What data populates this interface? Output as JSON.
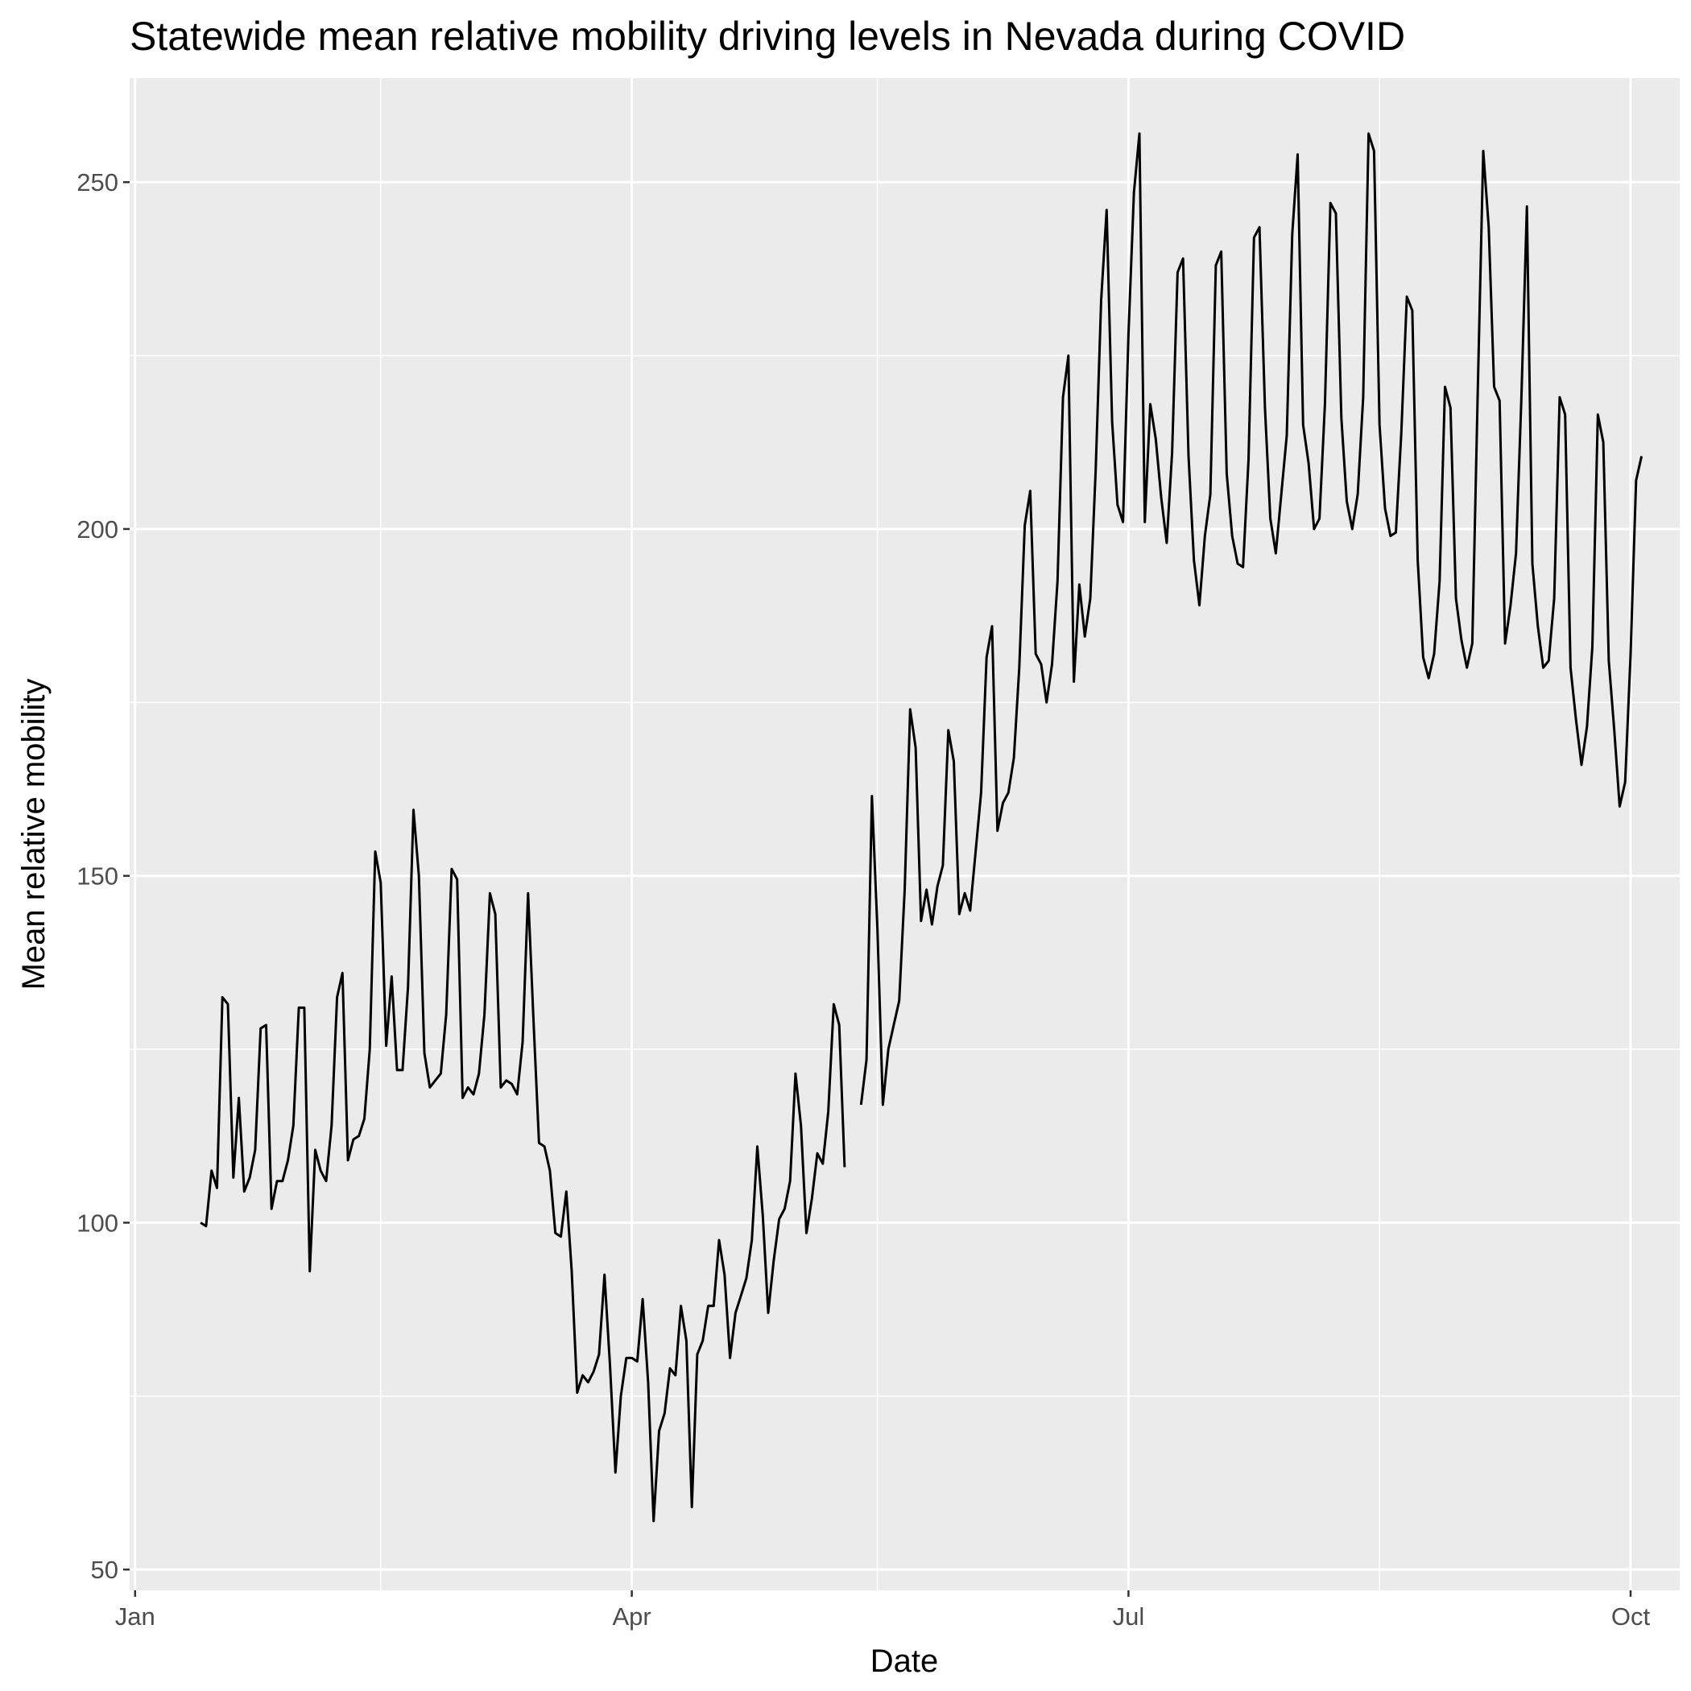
{
  "chart_data": {
    "type": "line",
    "title": "Statewide mean relative mobility driving levels in Nevada during COVID",
    "xlabel": "Date",
    "ylabel": "Mean relative mobility",
    "x_axis": {
      "kind": "date",
      "range": [
        "2019-12-31",
        "2020-10-10"
      ],
      "ticks": [
        {
          "date": "2020-01-01",
          "label": "Jan"
        },
        {
          "date": "2020-04-01",
          "label": "Apr"
        },
        {
          "date": "2020-07-01",
          "label": "Jul"
        },
        {
          "date": "2020-10-01",
          "label": "Oct"
        }
      ],
      "minor_gridlines": [
        "2020-02-15",
        "2020-05-16",
        "2020-08-16"
      ]
    },
    "y_axis": {
      "range": [
        47,
        265
      ],
      "ticks": [
        50,
        100,
        150,
        200,
        250
      ],
      "minor_gridlines": [
        75,
        125,
        175,
        225
      ]
    },
    "grid": true,
    "legend": "none",
    "colors": {
      "panel_background": "#ebebeb",
      "gridline": "#ffffff",
      "line": "#000000",
      "tick_text": "#4d4d4d"
    },
    "series": [
      {
        "points": [
          [
            "2020-01-13",
            100
          ],
          [
            "2020-01-14",
            99.5
          ],
          [
            "2020-01-15",
            107.5
          ],
          [
            "2020-01-16",
            105
          ],
          [
            "2020-01-17",
            132.5
          ],
          [
            "2020-01-18",
            131.5
          ],
          [
            "2020-01-19",
            106.5
          ],
          [
            "2020-01-20",
            118
          ],
          [
            "2020-01-21",
            104.5
          ],
          [
            "2020-01-22",
            106.5
          ],
          [
            "2020-01-23",
            110.5
          ],
          [
            "2020-01-24",
            128
          ],
          [
            "2020-01-25",
            128.5
          ],
          [
            "2020-01-26",
            102
          ],
          [
            "2020-01-27",
            106
          ],
          [
            "2020-01-28",
            106
          ],
          [
            "2020-01-29",
            109
          ],
          [
            "2020-01-30",
            114
          ],
          [
            "2020-01-31",
            131
          ],
          [
            "2020-02-01",
            131
          ],
          [
            "2020-02-02",
            93
          ],
          [
            "2020-02-03",
            110.5
          ],
          [
            "2020-02-04",
            107.5
          ],
          [
            "2020-02-05",
            106
          ],
          [
            "2020-02-06",
            114
          ],
          [
            "2020-02-07",
            132.5
          ],
          [
            "2020-02-08",
            136
          ],
          [
            "2020-02-09",
            109
          ],
          [
            "2020-02-10",
            112
          ],
          [
            "2020-02-11",
            112.5
          ],
          [
            "2020-02-12",
            115
          ],
          [
            "2020-02-13",
            125
          ],
          [
            "2020-02-14",
            153.5
          ],
          [
            "2020-02-15",
            149
          ],
          [
            "2020-02-16",
            125.5
          ],
          [
            "2020-02-17",
            135.5
          ],
          [
            "2020-02-18",
            122
          ],
          [
            "2020-02-19",
            122
          ],
          [
            "2020-02-20",
            134
          ],
          [
            "2020-02-21",
            159.5
          ],
          [
            "2020-02-22",
            150
          ],
          [
            "2020-02-23",
            124.5
          ],
          [
            "2020-02-24",
            119.5
          ],
          [
            "2020-02-25",
            120.5
          ],
          [
            "2020-02-26",
            121.5
          ],
          [
            "2020-02-27",
            130
          ],
          [
            "2020-02-28",
            151
          ],
          [
            "2020-02-29",
            149.5
          ],
          [
            "2020-03-01",
            118
          ],
          [
            "2020-03-02",
            119.5
          ],
          [
            "2020-03-03",
            118.5
          ],
          [
            "2020-03-04",
            121.5
          ],
          [
            "2020-03-05",
            130
          ],
          [
            "2020-03-06",
            147.5
          ],
          [
            "2020-03-07",
            144.5
          ],
          [
            "2020-03-08",
            119.5
          ],
          [
            "2020-03-09",
            120.5
          ],
          [
            "2020-03-10",
            120
          ],
          [
            "2020-03-11",
            118.5
          ],
          [
            "2020-03-12",
            126
          ],
          [
            "2020-03-13",
            147.5
          ],
          [
            "2020-03-14",
            129
          ],
          [
            "2020-03-15",
            111.5
          ],
          [
            "2020-03-16",
            111
          ],
          [
            "2020-03-17",
            107.5
          ],
          [
            "2020-03-18",
            98.5
          ],
          [
            "2020-03-19",
            98
          ],
          [
            "2020-03-20",
            104.5
          ],
          [
            "2020-03-21",
            93
          ],
          [
            "2020-03-22",
            75.5
          ],
          [
            "2020-03-23",
            78
          ],
          [
            "2020-03-24",
            77
          ],
          [
            "2020-03-25",
            78.5
          ],
          [
            "2020-03-26",
            81
          ],
          [
            "2020-03-27",
            92.5
          ],
          [
            "2020-03-28",
            79.5
          ],
          [
            "2020-03-29",
            64
          ],
          [
            "2020-03-30",
            75
          ],
          [
            "2020-03-31",
            80.5
          ],
          [
            "2020-04-01",
            80.5
          ],
          [
            "2020-04-02",
            80
          ],
          [
            "2020-04-03",
            89
          ],
          [
            "2020-04-04",
            77
          ],
          [
            "2020-04-05",
            57
          ],
          [
            "2020-04-06",
            70
          ],
          [
            "2020-04-07",
            72.5
          ],
          [
            "2020-04-08",
            79
          ],
          [
            "2020-04-09",
            78
          ],
          [
            "2020-04-10",
            88
          ],
          [
            "2020-04-11",
            83
          ],
          [
            "2020-04-12",
            59
          ],
          [
            "2020-04-13",
            81
          ],
          [
            "2020-04-14",
            83
          ],
          [
            "2020-04-15",
            88
          ],
          [
            "2020-04-16",
            88
          ],
          [
            "2020-04-17",
            97.5
          ],
          [
            "2020-04-18",
            92.5
          ],
          [
            "2020-04-19",
            80.5
          ],
          [
            "2020-04-20",
            87
          ],
          [
            "2020-04-21",
            89.5
          ],
          [
            "2020-04-22",
            92
          ],
          [
            "2020-04-23",
            97.5
          ],
          [
            "2020-04-24",
            111
          ],
          [
            "2020-04-25",
            101
          ],
          [
            "2020-04-26",
            87
          ],
          [
            "2020-04-27",
            94.5
          ],
          [
            "2020-04-28",
            100.5
          ],
          [
            "2020-04-29",
            102
          ],
          [
            "2020-04-30",
            106
          ],
          [
            "2020-05-01",
            121.5
          ],
          [
            "2020-05-02",
            114
          ],
          [
            "2020-05-03",
            98.5
          ],
          [
            "2020-05-04",
            103.5
          ],
          [
            "2020-05-05",
            110
          ],
          [
            "2020-05-06",
            108.5
          ],
          [
            "2020-05-07",
            116
          ],
          [
            "2020-05-08",
            131.5
          ],
          [
            "2020-05-09",
            128.5
          ],
          [
            "2020-05-10",
            108
          ],
          null,
          [
            "2020-05-13",
            117
          ],
          [
            "2020-05-14",
            123.5
          ],
          [
            "2020-05-15",
            161.5
          ],
          [
            "2020-05-16",
            142.5
          ],
          [
            "2020-05-17",
            117
          ],
          [
            "2020-05-18",
            125
          ],
          [
            "2020-05-19",
            128.5
          ],
          [
            "2020-05-20",
            132
          ],
          [
            "2020-05-21",
            148
          ],
          [
            "2020-05-22",
            174
          ],
          [
            "2020-05-23",
            168.5
          ],
          [
            "2020-05-24",
            143.5
          ],
          [
            "2020-05-25",
            148
          ],
          [
            "2020-05-26",
            143
          ],
          [
            "2020-05-27",
            148.5
          ],
          [
            "2020-05-28",
            151.5
          ],
          [
            "2020-05-29",
            171
          ],
          [
            "2020-05-30",
            166.5
          ],
          [
            "2020-05-31",
            144.5
          ],
          [
            "2020-06-01",
            147.5
          ],
          [
            "2020-06-02",
            145
          ],
          [
            "2020-06-03",
            153.5
          ],
          [
            "2020-06-04",
            162
          ],
          [
            "2020-06-05",
            181.5
          ],
          [
            "2020-06-06",
            186
          ],
          [
            "2020-06-07",
            156.5
          ],
          [
            "2020-06-08",
            160.5
          ],
          [
            "2020-06-09",
            162
          ],
          [
            "2020-06-10",
            167
          ],
          [
            "2020-06-11",
            180
          ],
          [
            "2020-06-12",
            200.5
          ],
          [
            "2020-06-13",
            205.5
          ],
          [
            "2020-06-14",
            182
          ],
          [
            "2020-06-15",
            180.5
          ],
          [
            "2020-06-16",
            175
          ],
          [
            "2020-06-17",
            180.5
          ],
          [
            "2020-06-18",
            192.5
          ],
          [
            "2020-06-19",
            219
          ],
          [
            "2020-06-20",
            225
          ],
          [
            "2020-06-21",
            178
          ],
          [
            "2020-06-22",
            192
          ],
          [
            "2020-06-23",
            184.5
          ],
          [
            "2020-06-24",
            190
          ],
          [
            "2020-06-25",
            208.5
          ],
          [
            "2020-06-26",
            233
          ],
          [
            "2020-06-27",
            246
          ],
          [
            "2020-06-28",
            215.5
          ],
          [
            "2020-06-29",
            203.5
          ],
          [
            "2020-06-30",
            201
          ],
          [
            "2020-07-01",
            228
          ],
          [
            "2020-07-02",
            248.5
          ],
          [
            "2020-07-03",
            257
          ],
          [
            "2020-07-04",
            201
          ],
          [
            "2020-07-05",
            218
          ],
          [
            "2020-07-06",
            213
          ],
          [
            "2020-07-07",
            204.5
          ],
          [
            "2020-07-08",
            198
          ],
          [
            "2020-07-09",
            211
          ],
          [
            "2020-07-10",
            237
          ],
          [
            "2020-07-11",
            239
          ],
          [
            "2020-07-12",
            210.5
          ],
          [
            "2020-07-13",
            195.5
          ],
          [
            "2020-07-14",
            189
          ],
          [
            "2020-07-15",
            199
          ],
          [
            "2020-07-16",
            205
          ],
          [
            "2020-07-17",
            238
          ],
          [
            "2020-07-18",
            240
          ],
          [
            "2020-07-19",
            208
          ],
          [
            "2020-07-20",
            199
          ],
          [
            "2020-07-21",
            195
          ],
          [
            "2020-07-22",
            194.5
          ],
          [
            "2020-07-23",
            210
          ],
          [
            "2020-07-24",
            242
          ],
          [
            "2020-07-25",
            243.5
          ],
          [
            "2020-07-26",
            217.5
          ],
          [
            "2020-07-27",
            201.5
          ],
          [
            "2020-07-28",
            196.5
          ],
          [
            "2020-07-29",
            205
          ],
          [
            "2020-07-30",
            213.5
          ],
          [
            "2020-07-31",
            242.5
          ],
          [
            "2020-08-01",
            254
          ],
          [
            "2020-08-02",
            215
          ],
          [
            "2020-08-03",
            209.5
          ],
          [
            "2020-08-04",
            200
          ],
          [
            "2020-08-05",
            201.5
          ],
          [
            "2020-08-06",
            218
          ],
          [
            "2020-08-07",
            247
          ],
          [
            "2020-08-08",
            245.5
          ],
          [
            "2020-08-09",
            216
          ],
          [
            "2020-08-10",
            204
          ],
          [
            "2020-08-11",
            200
          ],
          [
            "2020-08-12",
            205
          ],
          [
            "2020-08-13",
            219
          ],
          [
            "2020-08-14",
            257
          ],
          [
            "2020-08-15",
            254.5
          ],
          [
            "2020-08-16",
            215
          ],
          [
            "2020-08-17",
            203
          ],
          [
            "2020-08-18",
            199
          ],
          [
            "2020-08-19",
            199.5
          ],
          [
            "2020-08-20",
            214
          ],
          [
            "2020-08-21",
            233.5
          ],
          [
            "2020-08-22",
            231.5
          ],
          [
            "2020-08-23",
            195.5
          ],
          [
            "2020-08-24",
            181.5
          ],
          [
            "2020-08-25",
            178.5
          ],
          [
            "2020-08-26",
            182
          ],
          [
            "2020-08-27",
            192.5
          ],
          [
            "2020-08-28",
            220.5
          ],
          [
            "2020-08-29",
            217.5
          ],
          [
            "2020-08-30",
            190
          ],
          [
            "2020-08-31",
            184
          ],
          [
            "2020-09-01",
            180
          ],
          [
            "2020-09-02",
            183.5
          ],
          [
            "2020-09-03",
            220
          ],
          [
            "2020-09-04",
            254.5
          ],
          [
            "2020-09-05",
            243.5
          ],
          [
            "2020-09-06",
            220.5
          ],
          [
            "2020-09-07",
            218.5
          ],
          [
            "2020-09-08",
            183.5
          ],
          [
            "2020-09-09",
            189
          ],
          [
            "2020-09-10",
            196.5
          ],
          [
            "2020-09-11",
            219
          ],
          [
            "2020-09-12",
            246.5
          ],
          [
            "2020-09-13",
            195
          ],
          [
            "2020-09-14",
            186
          ],
          [
            "2020-09-15",
            180
          ],
          [
            "2020-09-16",
            181
          ],
          [
            "2020-09-17",
            190
          ],
          [
            "2020-09-18",
            219
          ],
          [
            "2020-09-19",
            216.5
          ],
          [
            "2020-09-20",
            180
          ],
          [
            "2020-09-21",
            172.5
          ],
          [
            "2020-09-22",
            166
          ],
          [
            "2020-09-23",
            171.5
          ],
          [
            "2020-09-24",
            183
          ],
          [
            "2020-09-25",
            216.5
          ],
          [
            "2020-09-26",
            212.5
          ],
          [
            "2020-09-27",
            181
          ],
          [
            "2020-09-28",
            171
          ],
          [
            "2020-09-29",
            160
          ],
          [
            "2020-09-30",
            163.5
          ],
          [
            "2020-10-01",
            182
          ],
          [
            "2020-10-02",
            207
          ],
          [
            "2020-10-03",
            210.5
          ]
        ]
      }
    ]
  }
}
